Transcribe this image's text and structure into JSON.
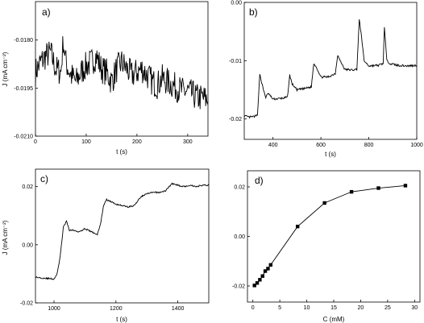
{
  "chart_data": [
    {
      "panel": "a)",
      "type": "line",
      "xlabel": "t (s)",
      "ylabel": "J (mA cm⁻²)",
      "xlim": [
        0,
        340
      ],
      "ylim": [
        -0.021,
        -0.0168
      ],
      "xticks": [
        "0",
        "100",
        "200",
        "300"
      ],
      "yticks": [
        "-0.0180",
        "-0.0195",
        "-0.0210"
      ],
      "ytick_values": [
        -0.018,
        -0.0195,
        -0.021
      ],
      "series": [
        {
          "x": [
            0,
            10,
            20,
            30,
            40,
            50,
            55,
            60,
            70,
            80,
            90,
            100,
            110,
            120,
            130,
            140,
            150,
            160,
            170,
            180,
            190,
            200,
            210,
            220,
            230,
            240,
            250,
            260,
            270,
            280,
            290,
            300,
            310,
            320,
            330,
            340
          ],
          "y": [
            -0.019,
            -0.0187,
            -0.0185,
            -0.0184,
            -0.0189,
            -0.019,
            -0.018,
            -0.0187,
            -0.0191,
            -0.0193,
            -0.019,
            -0.0188,
            -0.0187,
            -0.0185,
            -0.0189,
            -0.019,
            -0.0193,
            -0.0189,
            -0.0187,
            -0.0189,
            -0.0191,
            -0.019,
            -0.0189,
            -0.0191,
            -0.0193,
            -0.0194,
            -0.0192,
            -0.0193,
            -0.0194,
            -0.0195,
            -0.0196,
            -0.0196,
            -0.0197,
            -0.0198,
            -0.0198,
            -0.0199
          ]
        }
      ]
    },
    {
      "panel": "b)",
      "type": "line",
      "xlabel": "t (s)",
      "ylabel": "",
      "xlim": [
        280,
        1000
      ],
      "ylim": [
        -0.0235,
        0.0
      ],
      "xticks": [
        "400",
        "600",
        "800",
        "1000"
      ],
      "xtick_values": [
        400,
        600,
        800,
        1000
      ],
      "yticks": [
        "0.00",
        "-0.01",
        "-0.02"
      ],
      "ytick_values": [
        0.0,
        -0.01,
        -0.02
      ],
      "series": [
        {
          "x": [
            280,
            300,
            320,
            335,
            345,
            350,
            360,
            370,
            380,
            400,
            430,
            460,
            470,
            480,
            500,
            530,
            560,
            570,
            580,
            600,
            630,
            660,
            670,
            680,
            700,
            730,
            750,
            760,
            770,
            780,
            800,
            840,
            860,
            865,
            875,
            890,
            920,
            960,
            1000
          ],
          "y": [
            -0.0195,
            -0.0197,
            -0.0196,
            -0.0194,
            -0.0122,
            -0.0133,
            -0.015,
            -0.0163,
            -0.0156,
            -0.0166,
            -0.0165,
            -0.0163,
            -0.0125,
            -0.014,
            -0.015,
            -0.0148,
            -0.0145,
            -0.0105,
            -0.011,
            -0.0128,
            -0.0128,
            -0.0122,
            -0.009,
            -0.01,
            -0.0115,
            -0.0116,
            -0.0115,
            -0.003,
            -0.006,
            -0.01,
            -0.0109,
            -0.0108,
            -0.0105,
            -0.0041,
            -0.01,
            -0.0105,
            -0.0108,
            -0.0109,
            -0.0108
          ]
        }
      ]
    },
    {
      "panel": "c)",
      "type": "line",
      "xlabel": "t (s)",
      "ylabel": "J (mA cm⁻²)",
      "xlim": [
        940,
        1500
      ],
      "ylim": [
        -0.02,
        0.026
      ],
      "xticks": [
        "1000",
        "1200",
        "1400"
      ],
      "xtick_values": [
        1000,
        1200,
        1400
      ],
      "yticks": [
        "0.02",
        "0.00",
        "-0.02"
      ],
      "ytick_values": [
        0.02,
        0.0,
        -0.02
      ],
      "series": [
        {
          "x": [
            940,
            970,
            1000,
            1010,
            1020,
            1030,
            1040,
            1050,
            1060,
            1080,
            1100,
            1120,
            1140,
            1150,
            1160,
            1170,
            1180,
            1200,
            1220,
            1240,
            1260,
            1280,
            1300,
            1320,
            1340,
            1360,
            1380,
            1400,
            1420,
            1440,
            1460,
            1480,
            1500
          ],
          "y": [
            -0.0112,
            -0.0115,
            -0.0118,
            -0.01,
            -0.004,
            0.006,
            0.008,
            0.005,
            0.005,
            0.0045,
            0.0055,
            0.0045,
            0.0035,
            0.007,
            0.0135,
            0.0155,
            0.015,
            0.014,
            0.0135,
            0.013,
            0.0135,
            0.0165,
            0.0175,
            0.018,
            0.018,
            0.0185,
            0.021,
            0.0205,
            0.02,
            0.0205,
            0.02,
            0.0205,
            0.0205
          ]
        }
      ]
    },
    {
      "panel": "d)",
      "type": "scatter",
      "xlabel": "C (mM)",
      "ylabel": "",
      "xlim": [
        -1,
        31
      ],
      "ylim": [
        -0.0265,
        0.0265
      ],
      "xticks": [
        "0",
        "5",
        "10",
        "15",
        "20",
        "25",
        "30"
      ],
      "xtick_values": [
        0,
        5,
        10,
        15,
        20,
        25,
        30
      ],
      "yticks": [
        "0.02",
        "0.00",
        "-0.02"
      ],
      "ytick_values": [
        0.02,
        0.0,
        -0.02
      ],
      "series": [
        {
          "x": [
            0.3,
            0.8,
            1.3,
            1.8,
            2.3,
            2.8,
            3.3,
            8.3,
            13.3,
            18.3,
            23.3,
            28.3
          ],
          "y": [
            -0.0198,
            -0.0188,
            -0.0175,
            -0.016,
            -0.014,
            -0.013,
            -0.0115,
            0.004,
            0.0135,
            0.018,
            0.0195,
            0.0205
          ]
        }
      ]
    }
  ]
}
